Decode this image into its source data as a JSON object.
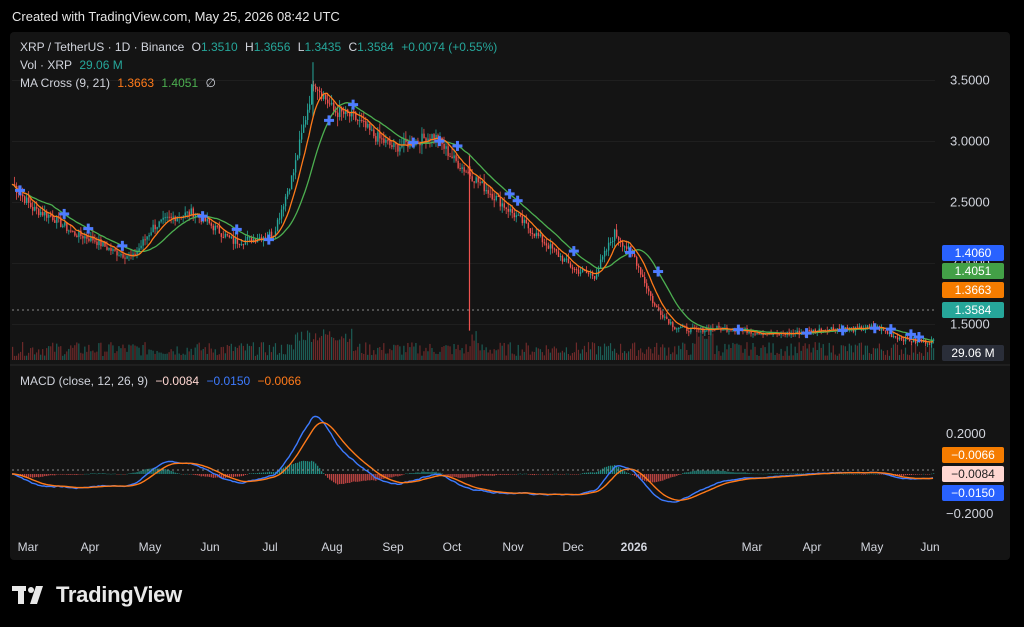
{
  "header": {
    "created_text": "Created with TradingView.com, May 25, 2026 08:42 UTC"
  },
  "legend": {
    "symbol": "XRP / TetherUS · 1D · Binance",
    "open_label": "O",
    "open": "1.3510",
    "high_label": "H",
    "high": "1.3656",
    "low_label": "L",
    "low": "1.3435",
    "close_label": "C",
    "close": "1.3584",
    "change": "+0.0074 (+0.55%)",
    "vol_label": "Vol · XRP",
    "vol": "29.06 M",
    "ma_label": "MA Cross (9, 21)",
    "ma_fast": "1.3663",
    "ma_slow": "1.4051",
    "ma_icon": "∅",
    "macd_label": "MACD (close, 12, 26, 9)",
    "macd_hist": "−0.0084",
    "macd_line": "−0.0150",
    "macd_signal": "−0.0066"
  },
  "price_tags": {
    "level": "1.4060",
    "ma_slow": "1.4051",
    "ma_fast": "1.3663",
    "last": "1.3584",
    "volume": "29.06 M",
    "macd_signal": "−0.0066",
    "macd_hist": "−0.0084",
    "macd_line": "−0.0150"
  },
  "colors": {
    "up": "#26a69a",
    "down": "#ef5350",
    "ma_fast": "#ff7a1a",
    "ma_slow": "#4caf50",
    "macd": "#3d7bff",
    "signal": "#ff7a1a",
    "cross": "#4e7cff",
    "grey_tag": "#2a2e39"
  },
  "footer": {
    "logo_icon": "tradingview-logo-icon",
    "brand": "TradingView"
  },
  "chart_data": {
    "type": "candlestick",
    "symbol": "XRP / TetherUS",
    "interval": "1D",
    "exchange": "Binance",
    "price_axis": {
      "ticks": [
        "3.5000",
        "3.0000",
        "2.5000",
        "2.0000",
        "1.5000"
      ],
      "ylim": [
        1.25,
        3.75
      ]
    },
    "macd_axis": {
      "ticks": [
        "0.2000",
        "−0.2000"
      ],
      "ylim": [
        -0.28,
        0.42
      ]
    },
    "x_axis": {
      "labels": [
        "Mar",
        "Apr",
        "May",
        "Jun",
        "Jul",
        "Aug",
        "Sep",
        "Oct",
        "Nov",
        "Dec",
        "2026",
        "Mar",
        "Apr",
        "May",
        "Jun"
      ],
      "bold_label": "2026"
    },
    "approx_close_series": {
      "x": [
        0,
        10,
        20,
        30,
        40,
        50,
        60,
        70,
        80,
        90,
        100,
        110,
        120,
        130,
        140,
        150,
        160,
        170,
        180,
        190,
        200,
        210,
        220,
        230,
        240,
        250,
        260,
        270,
        280,
        290,
        300,
        310,
        320,
        330,
        340,
        350,
        360,
        370,
        380,
        390,
        400,
        410,
        420,
        430,
        440,
        450
      ],
      "close": [
        2.65,
        2.45,
        2.38,
        2.25,
        2.2,
        2.1,
        2.05,
        2.3,
        2.38,
        2.42,
        2.3,
        2.18,
        2.2,
        2.25,
        2.75,
        3.5,
        3.25,
        3.2,
        3.05,
        2.95,
        3.0,
        3.05,
        2.85,
        2.7,
        2.55,
        2.4,
        2.25,
        2.1,
        1.95,
        1.9,
        2.25,
        2.05,
        1.65,
        1.48,
        1.45,
        1.47,
        1.46,
        1.44,
        1.42,
        1.43,
        1.45,
        1.47,
        1.46,
        1.48,
        1.4,
        1.36
      ]
    },
    "ma_cross_markers_x": [
      4,
      26,
      38,
      55,
      95,
      112,
      128,
      158,
      170,
      200,
      213,
      222,
      248,
      252,
      280,
      308,
      322,
      362,
      396,
      414,
      430,
      438,
      448,
      452
    ]
  }
}
